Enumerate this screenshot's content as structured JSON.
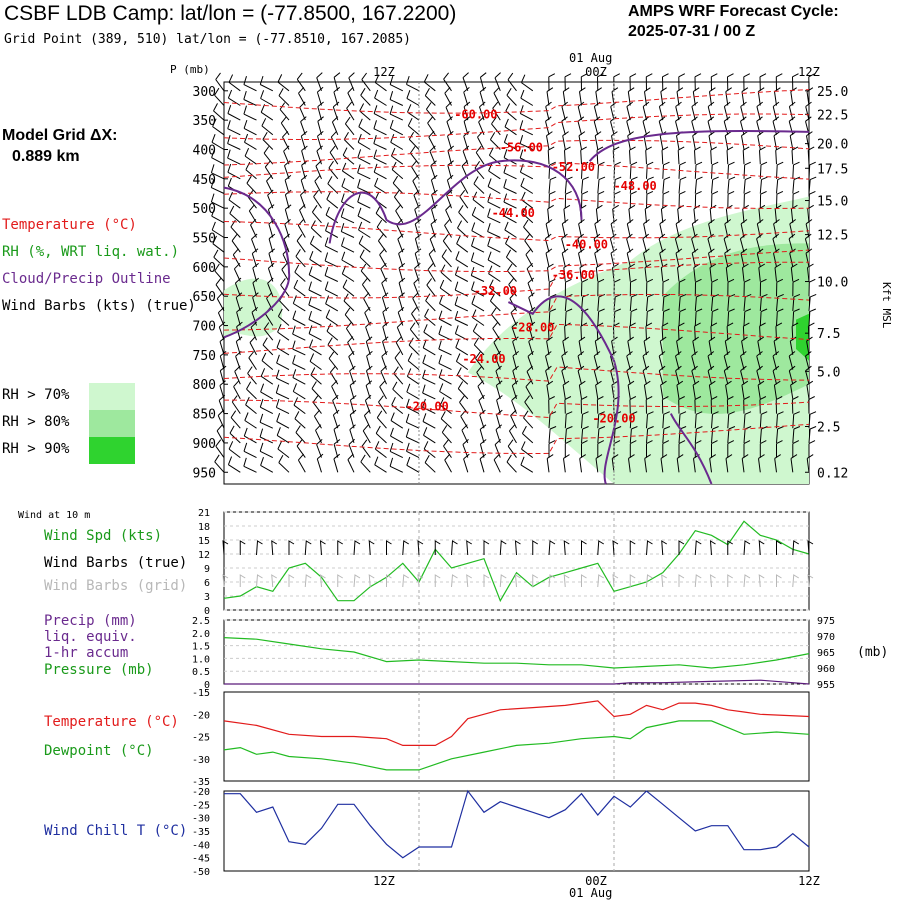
{
  "header": {
    "title": "CSBF LDB Camp:  lat/lon = (-77.8500, 167.2200)",
    "subtitle": "Grid Point (389, 510) lat/lon = (-77.8510, 167.2085)",
    "cycle_line1": "AMPS WRF Forecast Cycle:",
    "cycle_line2": "2025-07-31 / 00  Z"
  },
  "left_panel": {
    "grid_label": "Model Grid ΔX:",
    "grid_value": "0.889 km",
    "legend_temperature": "Temperature (°C)",
    "legend_rh": "RH (%, WRT liq. wat.)",
    "legend_cloud": "Cloud/Precip Outline",
    "legend_wind": "Wind Barbs (kts) (true)",
    "rh70": "RH > 70%",
    "rh80": "RH > 80%",
    "rh90": "RH > 90%"
  },
  "colors": {
    "temperature": "#e21b1b",
    "rh70": "#cff7cf",
    "rh80": "#9ee89e",
    "rh90": "#2fd32f",
    "cloud": "#6a2a8e",
    "wind_true": "#000000",
    "wind_grid": "#b8b8b8",
    "speed": "#22bb22",
    "pressure": "#22bb22",
    "precip": "#5a1a7a",
    "dewpoint": "#22bb22",
    "windchill": "#1f2fa0"
  },
  "time_axis": {
    "top_date": "01 Aug",
    "bottom_date": "01 Aug",
    "ticks": [
      "12Z",
      "00Z",
      "12Z"
    ]
  },
  "chart_data": [
    {
      "type": "heatmap",
      "y_axis_title": "P (mb)",
      "right_axis_title": "Kft MSL",
      "pressure_ticks": [
        "300",
        "350",
        "400",
        "450",
        "500",
        "550",
        "600",
        "650",
        "700",
        "750",
        "800",
        "850",
        "900",
        "950"
      ],
      "height_ticks": [
        "25.0",
        "22.5",
        "20.0",
        "17.5",
        "15.0",
        "12.5",
        "10.0",
        "7.5",
        "5.0",
        "2.5",
        "0.12"
      ],
      "height_tick_pressures": [
        300,
        340,
        390,
        432,
        487,
        545,
        625,
        713,
        778,
        872,
        950
      ],
      "ylim": [
        970,
        285
      ],
      "temperature_labels": [
        {
          "text": "-60.00",
          "hour": 15.5,
          "p": 340
        },
        {
          "text": "-56.00",
          "hour": 18.3,
          "p": 397
        },
        {
          "text": "-52.00",
          "hour": 21.5,
          "p": 430
        },
        {
          "text": "-48.00",
          "hour": 25.3,
          "p": 462
        },
        {
          "text": "-44.00",
          "hour": 17.8,
          "p": 508
        },
        {
          "text": "-40.00",
          "hour": 22.3,
          "p": 562
        },
        {
          "text": "-36.00",
          "hour": 21.5,
          "p": 614
        },
        {
          "text": "-32.00",
          "hour": 16.7,
          "p": 641
        },
        {
          "text": "-28.00",
          "hour": 19.0,
          "p": 703
        },
        {
          "text": "-24.00",
          "hour": 16.0,
          "p": 757
        },
        {
          "text": "-20.00",
          "hour": 12.5,
          "p": 838
        },
        {
          "text": "-20.00",
          "hour": 24.0,
          "p": 858
        }
      ]
    },
    {
      "type": "line",
      "left_label": "Wind at 10 m",
      "legend_speed": "Wind Spd (kts)",
      "legend_barbs_true": "Wind Barbs (true)",
      "legend_barbs_grid": "Wind Barbs (grid)",
      "yticks": [
        "21",
        "18",
        "15",
        "12",
        "9",
        "6",
        "3",
        "0"
      ],
      "ylim": [
        0,
        21
      ],
      "series": [
        {
          "values": [
            [
              0,
              2.5
            ],
            [
              1,
              3
            ],
            [
              2,
              5
            ],
            [
              3,
              4
            ],
            [
              4,
              9
            ],
            [
              5,
              10
            ],
            [
              6,
              7
            ],
            [
              7,
              2
            ],
            [
              8,
              2
            ],
            [
              9,
              5
            ],
            [
              10,
              7
            ],
            [
              11,
              10
            ],
            [
              12,
              6
            ],
            [
              13,
              13
            ],
            [
              14,
              9
            ],
            [
              15,
              10
            ],
            [
              16,
              11
            ],
            [
              17,
              2
            ],
            [
              18,
              8
            ],
            [
              19,
              5
            ],
            [
              20,
              7
            ],
            [
              21,
              8
            ],
            [
              22,
              9
            ],
            [
              23,
              10
            ],
            [
              24,
              4
            ],
            [
              25,
              5
            ],
            [
              26,
              6
            ],
            [
              27,
              8
            ],
            [
              28,
              12
            ],
            [
              29,
              17
            ],
            [
              30,
              16
            ],
            [
              31,
              14
            ],
            [
              32,
              19
            ],
            [
              33,
              16
            ],
            [
              34,
              15
            ],
            [
              35,
              13
            ],
            [
              36,
              12
            ]
          ]
        }
      ]
    },
    {
      "type": "line",
      "legend_precip_1": "Precip (mm)",
      "legend_precip_2": "liq. equiv.",
      "legend_precip_3": "1-hr accum",
      "legend_pressure": "Pressure (mb)",
      "right_unit": "(mb)",
      "left_ticks": [
        "2.5",
        "2.0",
        "1.5",
        "1.0",
        "0.5",
        "0"
      ],
      "right_ticks": [
        "975",
        "970",
        "965",
        "960",
        "955"
      ],
      "ylim_precip": [
        0,
        2.5
      ],
      "ylim_pressure": [
        955,
        975
      ],
      "series": [
        {
          "values": [
            [
              0,
              969.5
            ],
            [
              2,
              969
            ],
            [
              4,
              967.5
            ],
            [
              6,
              966
            ],
            [
              8,
              965
            ],
            [
              10,
              962
            ],
            [
              12,
              962.5
            ],
            [
              14,
              962
            ],
            [
              16,
              961.5
            ],
            [
              18,
              961.5
            ],
            [
              20,
              961
            ],
            [
              22,
              961
            ],
            [
              24,
              960
            ],
            [
              26,
              960.5
            ],
            [
              28,
              961
            ],
            [
              30,
              960
            ],
            [
              32,
              961
            ],
            [
              34,
              962.5
            ],
            [
              36,
              964.5
            ]
          ]
        },
        {
          "values": [
            [
              0,
              0
            ],
            [
              24,
              0
            ],
            [
              25,
              0.05
            ],
            [
              27,
              0.05
            ],
            [
              30,
              0.1
            ],
            [
              33,
              0.15
            ],
            [
              35,
              0.05
            ],
            [
              36,
              0
            ]
          ]
        }
      ]
    },
    {
      "type": "line",
      "legend_temperature": "Temperature (°C)",
      "legend_dewpoint": "Dewpoint (°C)",
      "yticks": [
        "-15",
        "-20",
        "-25",
        "-30",
        "-35"
      ],
      "ylim": [
        -35,
        -15
      ],
      "series": [
        {
          "values": [
            [
              0,
              -21.5
            ],
            [
              2,
              -22.5
            ],
            [
              4,
              -24.5
            ],
            [
              6,
              -25
            ],
            [
              8,
              -25
            ],
            [
              10,
              -25.5
            ],
            [
              11,
              -27
            ],
            [
              13,
              -27
            ],
            [
              14,
              -25
            ],
            [
              15,
              -21
            ],
            [
              17,
              -19
            ],
            [
              19,
              -18.5
            ],
            [
              21,
              -18
            ],
            [
              23,
              -17
            ],
            [
              24,
              -20.5
            ],
            [
              25,
              -20
            ],
            [
              26,
              -18
            ],
            [
              27,
              -19
            ],
            [
              28,
              -17.5
            ],
            [
              29,
              -17.5
            ],
            [
              30,
              -18
            ],
            [
              31,
              -19
            ],
            [
              32,
              -19.5
            ],
            [
              33,
              -20
            ],
            [
              36,
              -20.5
            ]
          ]
        },
        {
          "values": [
            [
              0,
              -28
            ],
            [
              1,
              -27.5
            ],
            [
              2,
              -29
            ],
            [
              3,
              -28.5
            ],
            [
              4,
              -29.5
            ],
            [
              6,
              -30
            ],
            [
              8,
              -31
            ],
            [
              10,
              -32.5
            ],
            [
              12,
              -32.5
            ],
            [
              14,
              -30
            ],
            [
              16,
              -28.5
            ],
            [
              18,
              -27
            ],
            [
              20,
              -26.5
            ],
            [
              22,
              -25.5
            ],
            [
              24,
              -25
            ],
            [
              25,
              -25.5
            ],
            [
              26,
              -23
            ],
            [
              28,
              -21.5
            ],
            [
              30,
              -21.5
            ],
            [
              31,
              -23
            ],
            [
              32,
              -24.5
            ],
            [
              34,
              -24
            ],
            [
              36,
              -24.5
            ]
          ]
        }
      ]
    },
    {
      "type": "line",
      "legend_windchill": "Wind Chill T (°C)",
      "yticks": [
        "-20",
        "-25",
        "-30",
        "-35",
        "-40",
        "-45",
        "-50"
      ],
      "ylim": [
        -50,
        -20
      ],
      "series": [
        {
          "values": [
            [
              0,
              -21
            ],
            [
              1,
              -21
            ],
            [
              2,
              -28
            ],
            [
              3,
              -26
            ],
            [
              4,
              -39
            ],
            [
              5,
              -40
            ],
            [
              6,
              -34
            ],
            [
              7,
              -25
            ],
            [
              8,
              -25
            ],
            [
              9,
              -33
            ],
            [
              10,
              -40
            ],
            [
              11,
              -45
            ],
            [
              12,
              -41
            ],
            [
              13,
              -41
            ],
            [
              14,
              -41
            ],
            [
              15,
              -20
            ],
            [
              16,
              -28
            ],
            [
              17,
              -24
            ],
            [
              18,
              -26
            ],
            [
              19,
              -28
            ],
            [
              20,
              -30
            ],
            [
              21,
              -27
            ],
            [
              22,
              -21
            ],
            [
              23,
              -29
            ],
            [
              24,
              -22
            ],
            [
              25,
              -26
            ],
            [
              26,
              -20
            ],
            [
              27,
              -25
            ],
            [
              28,
              -30
            ],
            [
              29,
              -35
            ],
            [
              30,
              -33
            ],
            [
              31,
              -33
            ],
            [
              32,
              -42
            ],
            [
              33,
              -42
            ],
            [
              34,
              -41
            ],
            [
              35,
              -36
            ],
            [
              36,
              -41
            ]
          ]
        }
      ]
    }
  ]
}
